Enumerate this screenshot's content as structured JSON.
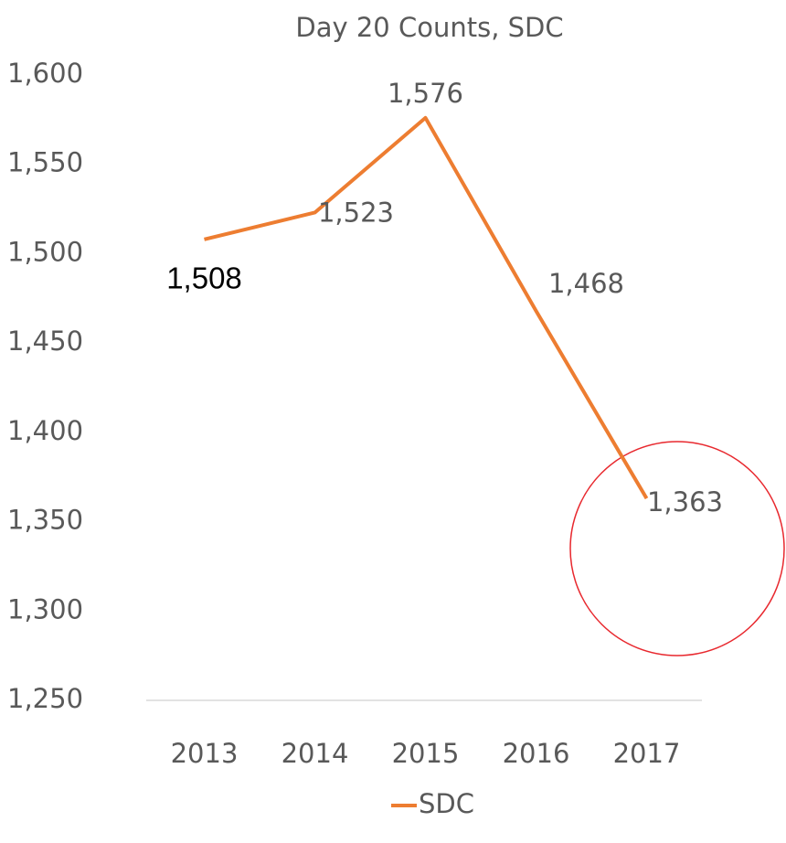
{
  "chart_data": {
    "type": "line",
    "title": "Day 20 Counts, SDC",
    "categories": [
      "2013",
      "2014",
      "2015",
      "2016",
      "2017"
    ],
    "series": [
      {
        "name": "SDC",
        "color": "#ed7d31",
        "values": [
          1508,
          1523,
          1576,
          1468,
          1363
        ],
        "value_labels": [
          "1,508",
          "1,523",
          "1,576",
          "1,468",
          "1,363"
        ]
      }
    ],
    "ylim": [
      1250,
      1600
    ],
    "yticks": [
      {
        "value": 1250,
        "label": "1,250"
      },
      {
        "value": 1300,
        "label": "1,300"
      },
      {
        "value": 1350,
        "label": "1,350"
      },
      {
        "value": 1400,
        "label": "1,400"
      },
      {
        "value": 1450,
        "label": "1,450"
      },
      {
        "value": 1500,
        "label": "1,500"
      },
      {
        "value": 1550,
        "label": "1,550"
      },
      {
        "value": 1600,
        "label": "1,600"
      }
    ],
    "legend": "bottom"
  }
}
